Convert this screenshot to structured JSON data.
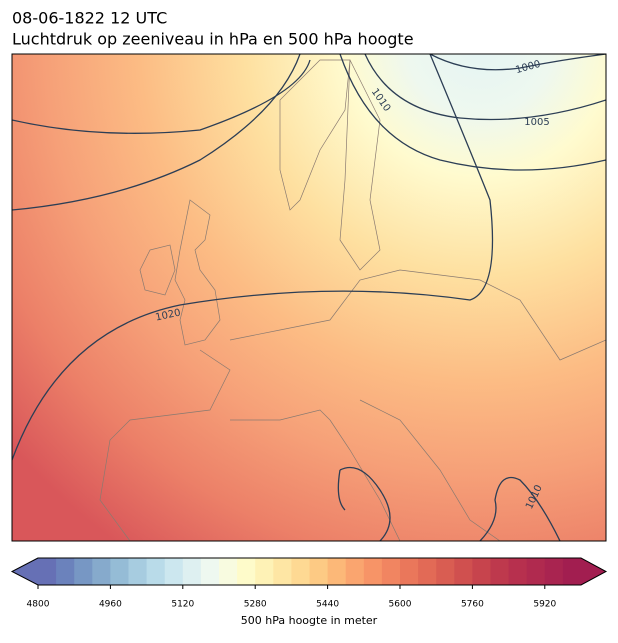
{
  "header": {
    "title": "08-06-1822 12 UTC",
    "subtitle": "Luchtdruk op zeeniveau in hPa en 500 hPa hoogte"
  },
  "map": {
    "contour_labels": [
      "1000",
      "1005",
      "1010",
      "1020",
      "1010"
    ]
  },
  "colorbar": {
    "label": "500 hPa hoogte in meter",
    "lim": [
      4800,
      6000
    ],
    "ticks": [
      4800,
      4960,
      5120,
      5280,
      5440,
      5600,
      5760,
      5920
    ],
    "colors": [
      "#6670b5",
      "#6b82bc",
      "#7797c4",
      "#86aacc",
      "#95bcd6",
      "#a7cce0",
      "#b9dbe9",
      "#cce7ef",
      "#def0f1",
      "#eef8f0",
      "#f8fbe0",
      "#fefbca",
      "#fef2b6",
      "#fee6a4",
      "#fed993",
      "#fdca84",
      "#fcb878",
      "#faa56f",
      "#f79467",
      "#f18561",
      "#ea775b",
      "#e26a56",
      "#d95d52",
      "#d0504f",
      "#c7444d",
      "#be394d",
      "#b7304e",
      "#b02a4f",
      "#a92450",
      "#a21e50"
    ]
  }
}
